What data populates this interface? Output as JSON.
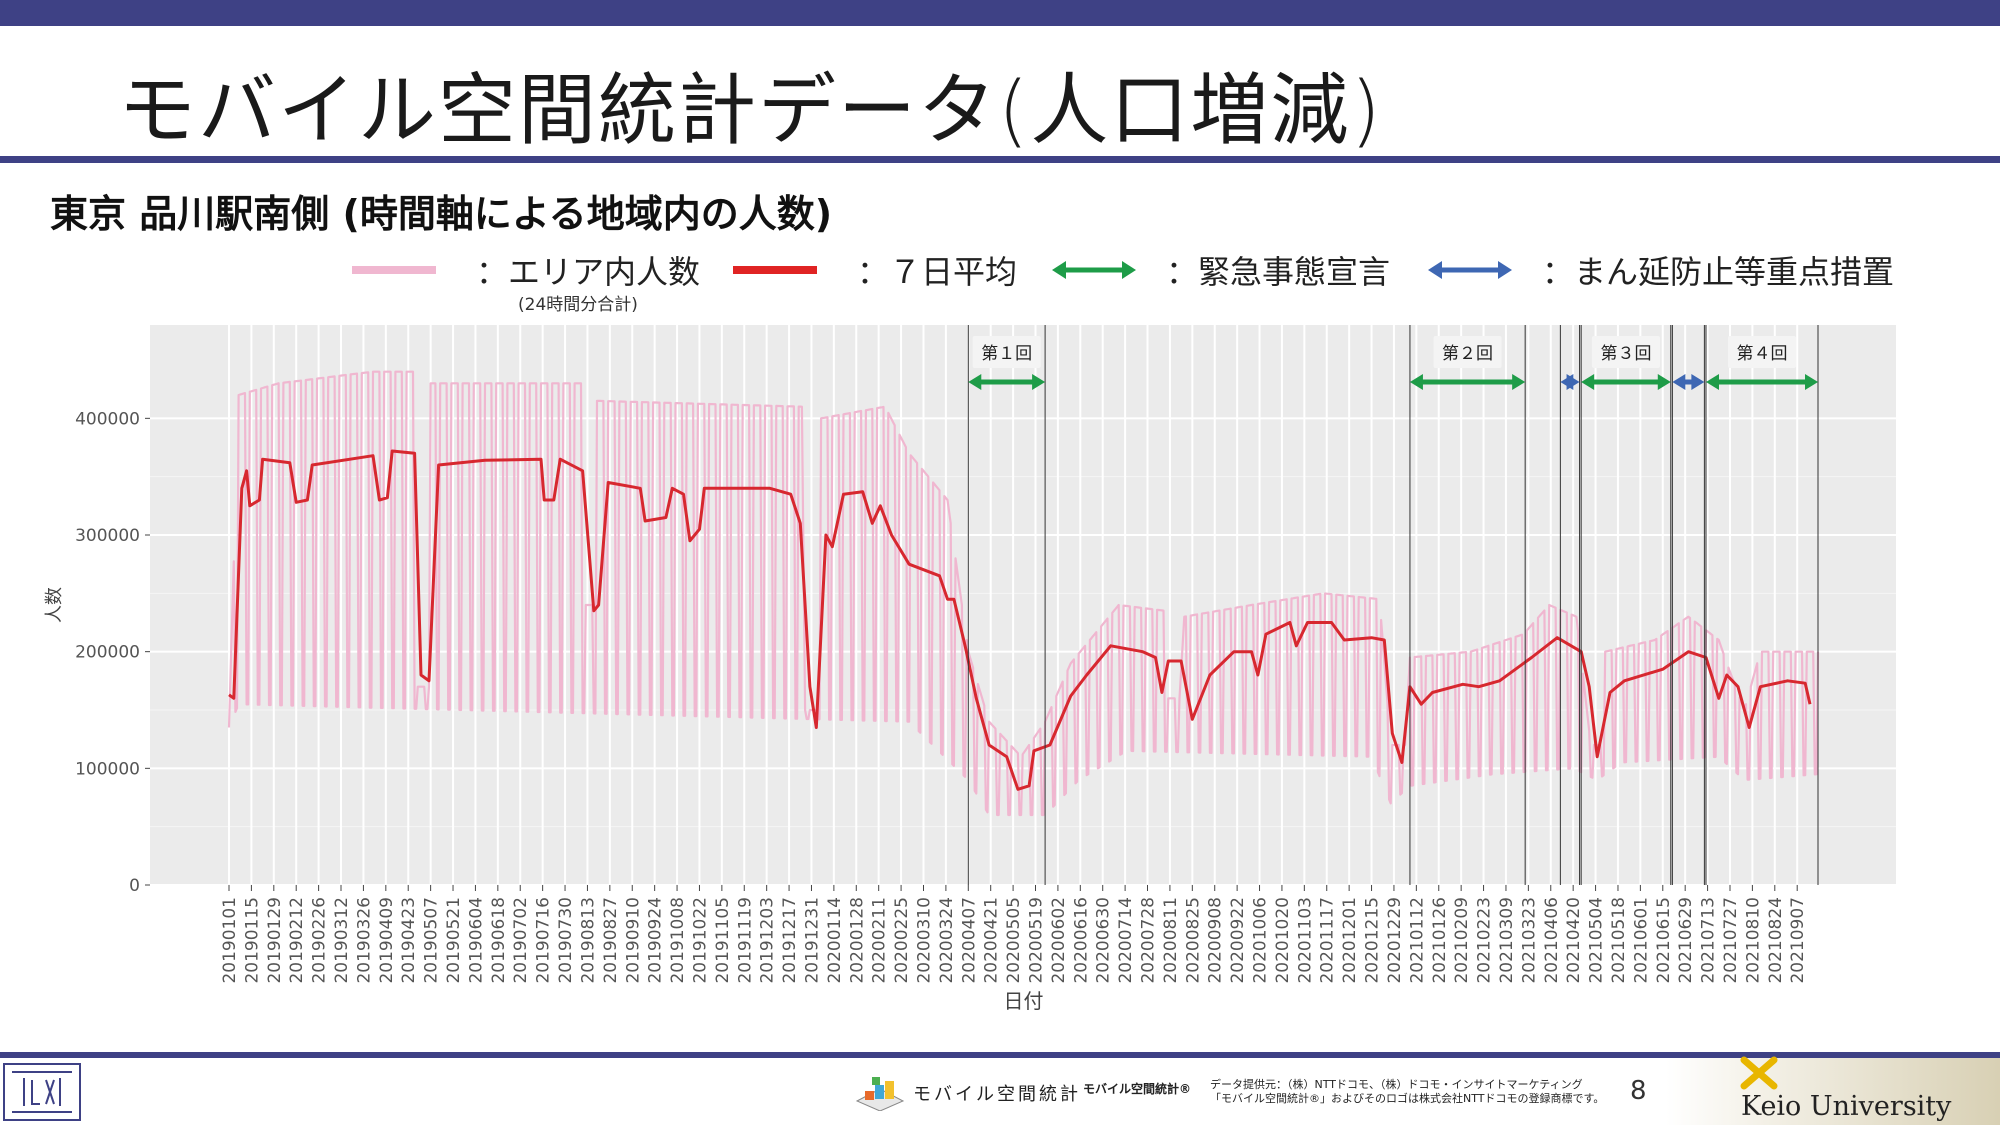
{
  "slide": {
    "title": "モバイル空間統計データ(人口増減)",
    "subtitle": "東京 品川駅南側 (時間軸による地域内の人数)",
    "page_number": "8"
  },
  "legend": {
    "items": [
      {
        "label": "：エリア内人数",
        "color": "#f0b7d0"
      },
      {
        "label": "：７日平均",
        "color": "#e02424"
      },
      {
        "label": "：緊急事態宣言",
        "color": "#1e9c48"
      },
      {
        "label": "：まん延防止等重点措置",
        "color": "#3e67b3"
      }
    ],
    "note": "(24時間分合計)"
  },
  "footer": {
    "mobile_logo_text": "モバイル空間統計",
    "mobile_small": "モバイル空間統計®",
    "provider_line1": "データ提供元：（株）NTTドコモ、（株）ドコモ・インサイトマーケティング",
    "provider_line2": "「モバイル空間統計®」およびそのロゴは株式会社NTTドコモの登録商標です。",
    "university": "Keio University"
  },
  "chart_data": {
    "type": "line",
    "xlabel": "日付",
    "ylabel": "人数",
    "ylim": [
      0,
      480000
    ],
    "yticks": [
      0,
      100000,
      200000,
      300000,
      400000
    ],
    "ytick_labels": [
      "0",
      "100000",
      "200000",
      "300000",
      "400000"
    ],
    "date_start": "2019-01-01",
    "date_end": "2021-09-20",
    "xtick_labels": [
      "20190101",
      "20190115",
      "20190129",
      "20190212",
      "20190226",
      "20190312",
      "20190326",
      "20190409",
      "20190423",
      "20190507",
      "20190521",
      "20190604",
      "20190618",
      "20190702",
      "20190716",
      "20190730",
      "20190813",
      "20190827",
      "20190910",
      "20190924",
      "20191008",
      "20191022",
      "20191105",
      "20191119",
      "20191203",
      "20191217",
      "20191231",
      "20200114",
      "20200128",
      "20200211",
      "20200225",
      "20200310",
      "20200324",
      "20200407",
      "20200421",
      "20200505",
      "20200519",
      "20200602",
      "20200616",
      "20200630",
      "20200714",
      "20200728",
      "20200811",
      "20200825",
      "20200908",
      "20200922",
      "20201006",
      "20201020",
      "20201103",
      "20201117",
      "20201201",
      "20201215",
      "20201229",
      "20210112",
      "20210126",
      "20210209",
      "20210223",
      "20210309",
      "20210323",
      "20210406",
      "20210420",
      "20210504",
      "20210518",
      "20210601",
      "20210615",
      "20210629",
      "20210713",
      "20210727",
      "20210810",
      "20210824",
      "20210907"
    ],
    "grid": true,
    "series": [
      {
        "name": "エリア内人数",
        "kind": "daily",
        "color": "#f0b7d0",
        "weekday_level": [
          [
            "2019-01-01",
            135000
          ],
          [
            "2019-01-07",
            420000
          ],
          [
            "2019-02-01",
            430000
          ],
          [
            "2019-04-01",
            440000
          ],
          [
            "2019-04-26",
            440000
          ],
          [
            "2019-04-27",
            170000
          ],
          [
            "2019-05-06",
            170000
          ],
          [
            "2019-05-07",
            430000
          ],
          [
            "2019-08-09",
            430000
          ],
          [
            "2019-08-10",
            240000
          ],
          [
            "2019-08-18",
            240000
          ],
          [
            "2019-08-19",
            415000
          ],
          [
            "2019-12-25",
            410000
          ],
          [
            "2019-12-27",
            150000
          ],
          [
            "2020-01-05",
            150000
          ],
          [
            "2020-01-06",
            400000
          ],
          [
            "2020-02-15",
            410000
          ],
          [
            "2020-03-01",
            370000
          ],
          [
            "2020-03-25",
            330000
          ],
          [
            "2020-04-07",
            200000
          ],
          [
            "2020-04-20",
            140000
          ],
          [
            "2020-05-10",
            110000
          ],
          [
            "2020-05-25",
            140000
          ],
          [
            "2020-06-10",
            190000
          ],
          [
            "2020-07-10",
            240000
          ],
          [
            "2020-08-08",
            235000
          ],
          [
            "2020-08-10",
            160000
          ],
          [
            "2020-08-17",
            160000
          ],
          [
            "2020-08-20",
            230000
          ],
          [
            "2020-10-01",
            240000
          ],
          [
            "2020-11-15",
            250000
          ],
          [
            "2020-12-20",
            245000
          ],
          [
            "2020-12-27",
            120000
          ],
          [
            "2021-01-05",
            120000
          ],
          [
            "2021-01-08",
            195000
          ],
          [
            "2021-02-15",
            200000
          ],
          [
            "2021-03-20",
            215000
          ],
          [
            "2021-04-05",
            240000
          ],
          [
            "2021-04-22",
            230000
          ],
          [
            "2021-05-01",
            120000
          ],
          [
            "2021-05-08",
            120000
          ],
          [
            "2021-05-10",
            200000
          ],
          [
            "2021-06-10",
            210000
          ],
          [
            "2021-07-01",
            230000
          ],
          [
            "2021-07-20",
            210000
          ],
          [
            "2021-07-25",
            190000
          ],
          [
            "2021-08-05",
            150000
          ],
          [
            "2021-08-15",
            200000
          ],
          [
            "2021-09-20",
            200000
          ]
        ],
        "weekend_level": [
          [
            "2019-01-01",
            135000
          ],
          [
            "2019-01-07",
            155000
          ],
          [
            "2020-03-01",
            140000
          ],
          [
            "2020-04-07",
            90000
          ],
          [
            "2020-04-20",
            60000
          ],
          [
            "2020-05-25",
            60000
          ],
          [
            "2020-06-15",
            90000
          ],
          [
            "2020-07-15",
            115000
          ],
          [
            "2020-12-15",
            110000
          ],
          [
            "2020-12-27",
            70000
          ],
          [
            "2021-01-08",
            85000
          ],
          [
            "2021-03-01",
            95000
          ],
          [
            "2021-04-20",
            100000
          ],
          [
            "2021-05-05",
            90000
          ],
          [
            "2021-05-20",
            105000
          ],
          [
            "2021-07-20",
            110000
          ],
          [
            "2021-08-05",
            90000
          ],
          [
            "2021-09-20",
            95000
          ]
        ]
      },
      {
        "name": "７日平均",
        "kind": "smooth",
        "color": "#d7282f",
        "points": [
          [
            "2019-01-01",
            163000
          ],
          [
            "2019-01-04",
            160000
          ],
          [
            "2019-01-09",
            340000
          ],
          [
            "2019-01-12",
            355000
          ],
          [
            "2019-01-14",
            325000
          ],
          [
            "2019-01-20",
            330000
          ],
          [
            "2019-01-22",
            365000
          ],
          [
            "2019-02-08",
            362000
          ],
          [
            "2019-02-12",
            328000
          ],
          [
            "2019-02-19",
            330000
          ],
          [
            "2019-02-22",
            360000
          ],
          [
            "2019-04-01",
            368000
          ],
          [
            "2019-04-05",
            330000
          ],
          [
            "2019-04-10",
            332000
          ],
          [
            "2019-04-13",
            372000
          ],
          [
            "2019-04-27",
            370000
          ],
          [
            "2019-05-01",
            180000
          ],
          [
            "2019-05-06",
            175000
          ],
          [
            "2019-05-12",
            360000
          ],
          [
            "2019-06-10",
            364000
          ],
          [
            "2019-07-15",
            365000
          ],
          [
            "2019-07-17",
            330000
          ],
          [
            "2019-07-23",
            330000
          ],
          [
            "2019-07-27",
            365000
          ],
          [
            "2019-08-10",
            355000
          ],
          [
            "2019-08-17",
            235000
          ],
          [
            "2019-08-20",
            240000
          ],
          [
            "2019-08-26",
            345000
          ],
          [
            "2019-09-15",
            340000
          ],
          [
            "2019-09-18",
            312000
          ],
          [
            "2019-10-01",
            315000
          ],
          [
            "2019-10-05",
            340000
          ],
          [
            "2019-10-12",
            335000
          ],
          [
            "2019-10-16",
            295000
          ],
          [
            "2019-10-22",
            305000
          ],
          [
            "2019-10-25",
            340000
          ],
          [
            "2019-12-05",
            340000
          ],
          [
            "2019-12-18",
            335000
          ],
          [
            "2019-12-24",
            310000
          ],
          [
            "2019-12-30",
            170000
          ],
          [
            "2020-01-03",
            135000
          ],
          [
            "2020-01-09",
            300000
          ],
          [
            "2020-01-13",
            290000
          ],
          [
            "2020-01-20",
            335000
          ],
          [
            "2020-02-01",
            337000
          ],
          [
            "2020-02-07",
            310000
          ],
          [
            "2020-02-12",
            325000
          ],
          [
            "2020-02-19",
            300000
          ],
          [
            "2020-03-01",
            275000
          ],
          [
            "2020-03-20",
            265000
          ],
          [
            "2020-03-25",
            245000
          ],
          [
            "2020-03-29",
            245000
          ],
          [
            "2020-04-05",
            205000
          ],
          [
            "2020-04-12",
            160000
          ],
          [
            "2020-04-20",
            120000
          ],
          [
            "2020-05-01",
            110000
          ],
          [
            "2020-05-08",
            82000
          ],
          [
            "2020-05-15",
            85000
          ],
          [
            "2020-05-18",
            115000
          ],
          [
            "2020-05-28",
            120000
          ],
          [
            "2020-06-10",
            162000
          ],
          [
            "2020-06-20",
            180000
          ],
          [
            "2020-07-05",
            205000
          ],
          [
            "2020-07-25",
            200000
          ],
          [
            "2020-08-02",
            195000
          ],
          [
            "2020-08-06",
            165000
          ],
          [
            "2020-08-10",
            192000
          ],
          [
            "2020-08-18",
            192000
          ],
          [
            "2020-08-25",
            142000
          ],
          [
            "2020-09-05",
            180000
          ],
          [
            "2020-09-20",
            200000
          ],
          [
            "2020-10-01",
            200000
          ],
          [
            "2020-10-05",
            180000
          ],
          [
            "2020-10-10",
            215000
          ],
          [
            "2020-10-25",
            225000
          ],
          [
            "2020-10-29",
            205000
          ],
          [
            "2020-11-05",
            225000
          ],
          [
            "2020-11-20",
            225000
          ],
          [
            "2020-11-28",
            210000
          ],
          [
            "2020-12-15",
            212000
          ],
          [
            "2020-12-23",
            210000
          ],
          [
            "2020-12-28",
            130000
          ],
          [
            "2021-01-03",
            105000
          ],
          [
            "2021-01-08",
            170000
          ],
          [
            "2021-01-15",
            155000
          ],
          [
            "2021-01-22",
            165000
          ],
          [
            "2021-02-10",
            172000
          ],
          [
            "2021-02-20",
            170000
          ],
          [
            "2021-03-05",
            175000
          ],
          [
            "2021-03-25",
            195000
          ],
          [
            "2021-04-10",
            212000
          ],
          [
            "2021-04-25",
            200000
          ],
          [
            "2021-04-30",
            170000
          ],
          [
            "2021-05-05",
            110000
          ],
          [
            "2021-05-13",
            165000
          ],
          [
            "2021-05-22",
            175000
          ],
          [
            "2021-06-15",
            185000
          ],
          [
            "2021-07-01",
            200000
          ],
          [
            "2021-07-12",
            195000
          ],
          [
            "2021-07-20",
            160000
          ],
          [
            "2021-07-25",
            180000
          ],
          [
            "2021-08-01",
            170000
          ],
          [
            "2021-08-08",
            135000
          ],
          [
            "2021-08-15",
            170000
          ],
          [
            "2021-09-01",
            175000
          ],
          [
            "2021-09-12",
            173000
          ],
          [
            "2021-09-15",
            155000
          ]
        ]
      }
    ],
    "periods": [
      {
        "label": "第１回",
        "type": "緊急事態宣言",
        "color": "#1e9c48",
        "start": "2020-04-07",
        "end": "2020-05-25"
      },
      {
        "label": "第２回",
        "type": "緊急事態宣言",
        "color": "#1e9c48",
        "start": "2021-01-08",
        "end": "2021-03-21"
      },
      {
        "type": "まん延防止等重点措置",
        "color": "#3e67b3",
        "start": "2021-04-12",
        "end": "2021-04-24"
      },
      {
        "label": "第３回",
        "type": "緊急事態宣言",
        "color": "#1e9c48",
        "start": "2021-04-25",
        "end": "2021-06-20"
      },
      {
        "type": "まん延防止等重点措置",
        "color": "#3e67b3",
        "start": "2021-06-21",
        "end": "2021-07-11"
      },
      {
        "label": "第４回",
        "type": "緊急事態宣言",
        "color": "#1e9c48",
        "start": "2021-07-12",
        "end": "2021-09-20"
      }
    ]
  }
}
